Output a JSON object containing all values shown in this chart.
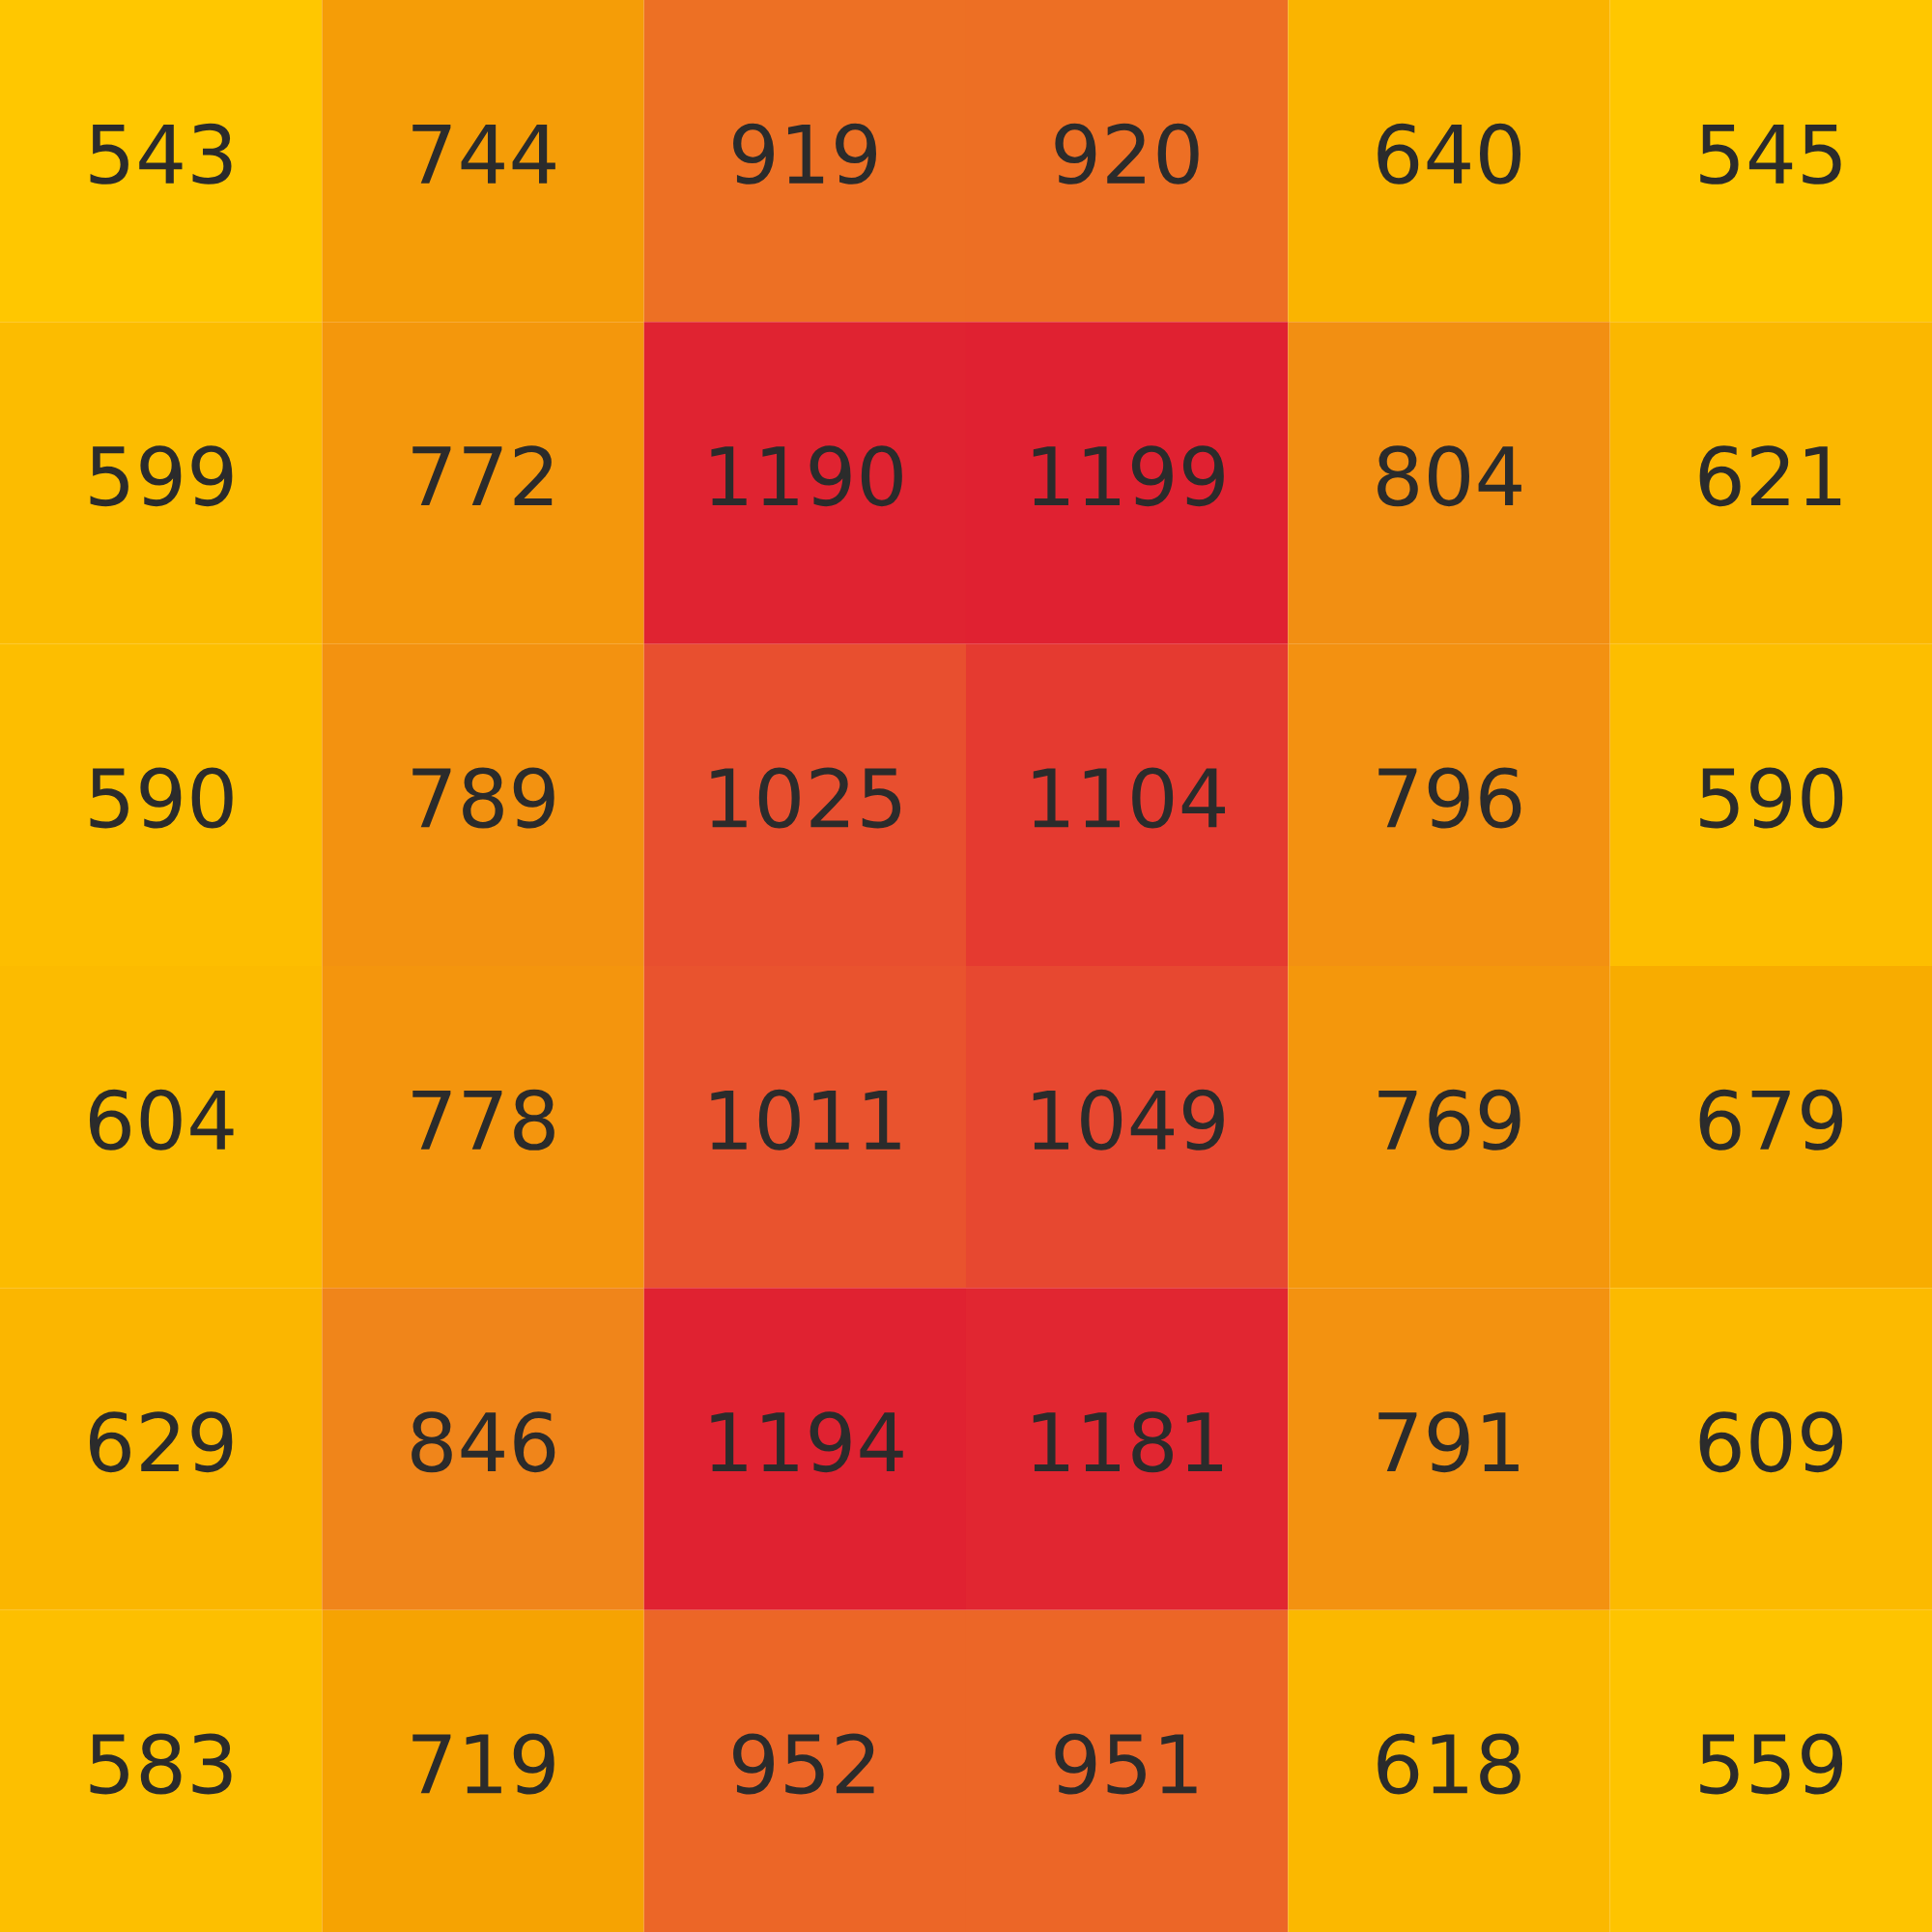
{
  "chart_data": {
    "type": "heatmap",
    "categories": [
      null,
      null,
      null,
      null,
      null,
      null
    ],
    "y_categories": [
      null,
      null,
      null,
      null,
      null,
      null
    ],
    "cells": [
      [
        543,
        744,
        919,
        920,
        640,
        545
      ],
      [
        599,
        772,
        1190,
        1199,
        804,
        621
      ],
      [
        590,
        789,
        1025,
        1104,
        796,
        590
      ],
      [
        604,
        778,
        1011,
        1049,
        769,
        679
      ],
      [
        629,
        846,
        1194,
        1181,
        791,
        609
      ],
      [
        583,
        719,
        952,
        951,
        618,
        559
      ]
    ],
    "data_labels": true
  }
}
